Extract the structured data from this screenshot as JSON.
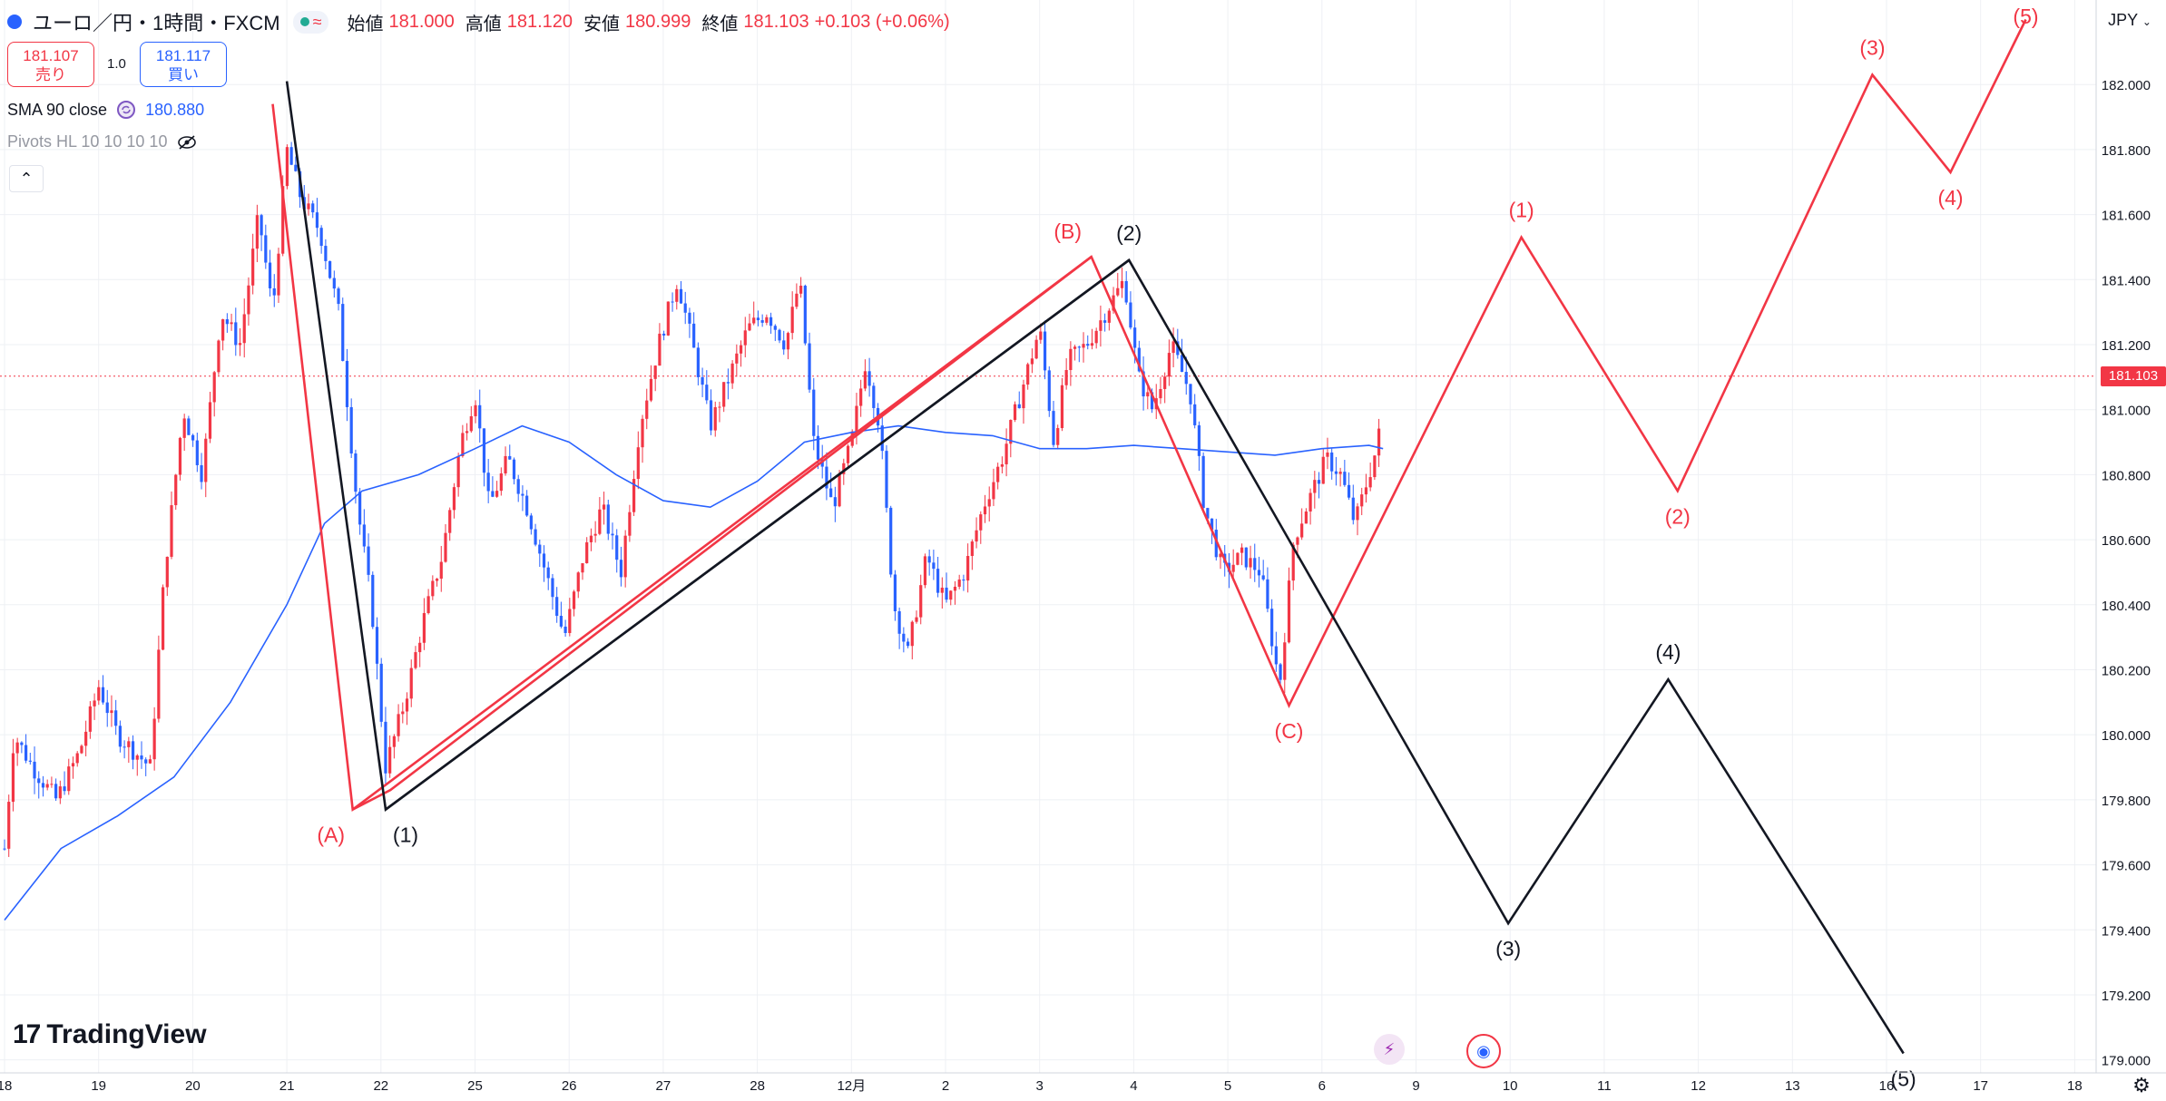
{
  "header": {
    "symbol": "ユーロ／円・1時間・FXCM",
    "status_glyph": "≈",
    "open_label": "始値",
    "open": "181.000",
    "high_label": "高値",
    "high": "181.120",
    "low_label": "安値",
    "low": "180.999",
    "close_label": "終値",
    "close": "181.103",
    "change": "+0.103 (+0.06%)"
  },
  "trade": {
    "sell_price": "181.107",
    "sell_label": "売り",
    "quantity": "1.0",
    "buy_price": "181.117",
    "buy_label": "買い"
  },
  "indicators": {
    "sma_label": "SMA 90 close",
    "sma_value": "180.880",
    "pivots_label": "Pivots HL 10 10 10 10"
  },
  "currency": "JPY",
  "current_price": "181.103",
  "branding": "TradingView",
  "colors": {
    "red": "#f23645",
    "blue": "#2962ff",
    "black": "#131722",
    "sma": "#2962ff"
  },
  "chart_data": {
    "type": "line",
    "title": "ユーロ／円・1時間・FXCM",
    "xlabel": "",
    "ylabel": "",
    "ylim": [
      178.96,
      182.26
    ],
    "y_ticks": [
      "182.000",
      "181.800",
      "181.600",
      "181.400",
      "181.200",
      "181.000",
      "180.800",
      "180.600",
      "180.400",
      "180.200",
      "180.000",
      "179.800",
      "179.600",
      "179.400",
      "179.200",
      "179.000"
    ],
    "x_ticks": [
      {
        "t": 0,
        "label": "18"
      },
      {
        "t": 1,
        "label": "19"
      },
      {
        "t": 2,
        "label": "20"
      },
      {
        "t": 3,
        "label": "21"
      },
      {
        "t": 4,
        "label": "22"
      },
      {
        "t": 5,
        "label": "25"
      },
      {
        "t": 6,
        "label": "26"
      },
      {
        "t": 7,
        "label": "27"
      },
      {
        "t": 8,
        "label": "28"
      },
      {
        "t": 9,
        "label": "12月"
      },
      {
        "t": 10,
        "label": "2"
      },
      {
        "t": 11,
        "label": "3"
      },
      {
        "t": 12,
        "label": "4"
      },
      {
        "t": 13,
        "label": "5"
      },
      {
        "t": 14,
        "label": "6"
      },
      {
        "t": 15,
        "label": "9"
      },
      {
        "t": 16,
        "label": "10"
      },
      {
        "t": 17,
        "label": "11"
      },
      {
        "t": 18,
        "label": "12"
      },
      {
        "t": 19,
        "label": "13"
      },
      {
        "t": 20,
        "label": "16"
      },
      {
        "t": 21,
        "label": "17"
      },
      {
        "t": 22,
        "label": "18"
      }
    ],
    "price_keypoints": [
      [
        0.0,
        179.65
      ],
      [
        0.1,
        180.0
      ],
      [
        0.3,
        179.9
      ],
      [
        0.55,
        179.8
      ],
      [
        0.8,
        179.95
      ],
      [
        1.0,
        180.15
      ],
      [
        1.2,
        180.0
      ],
      [
        1.55,
        179.9
      ],
      [
        1.7,
        180.5
      ],
      [
        1.9,
        181.0
      ],
      [
        2.1,
        180.8
      ],
      [
        2.3,
        181.3
      ],
      [
        2.5,
        181.2
      ],
      [
        2.7,
        181.6
      ],
      [
        2.85,
        181.3
      ],
      [
        3.0,
        181.8
      ],
      [
        3.15,
        181.65
      ],
      [
        3.35,
        181.55
      ],
      [
        3.55,
        181.3
      ],
      [
        3.75,
        180.7
      ],
      [
        3.9,
        180.4
      ],
      [
        4.05,
        179.9
      ],
      [
        4.25,
        180.1
      ],
      [
        4.45,
        180.35
      ],
      [
        4.65,
        180.55
      ],
      [
        4.85,
        180.9
      ],
      [
        5.0,
        181.05
      ],
      [
        5.15,
        180.7
      ],
      [
        5.35,
        180.85
      ],
      [
        5.55,
        180.7
      ],
      [
        5.75,
        180.5
      ],
      [
        5.95,
        180.3
      ],
      [
        6.15,
        180.55
      ],
      [
        6.35,
        180.7
      ],
      [
        6.55,
        180.5
      ],
      [
        6.75,
        180.95
      ],
      [
        6.95,
        181.2
      ],
      [
        7.15,
        181.4
      ],
      [
        7.35,
        181.15
      ],
      [
        7.5,
        180.95
      ],
      [
        7.7,
        181.1
      ],
      [
        7.9,
        181.25
      ],
      [
        8.1,
        181.3
      ],
      [
        8.3,
        181.2
      ],
      [
        8.45,
        181.4
      ],
      [
        8.6,
        180.9
      ],
      [
        8.8,
        180.7
      ],
      [
        9.0,
        180.9
      ],
      [
        9.15,
        181.15
      ],
      [
        9.3,
        180.95
      ],
      [
        9.45,
        180.4
      ],
      [
        9.6,
        180.25
      ],
      [
        9.8,
        180.55
      ],
      [
        10.0,
        180.4
      ],
      [
        10.2,
        180.5
      ],
      [
        10.4,
        180.7
      ],
      [
        10.6,
        180.85
      ],
      [
        10.8,
        181.05
      ],
      [
        11.0,
        181.25
      ],
      [
        11.15,
        180.9
      ],
      [
        11.3,
        181.15
      ],
      [
        11.5,
        181.2
      ],
      [
        11.7,
        181.3
      ],
      [
        11.9,
        181.4
      ],
      [
        12.05,
        181.1
      ],
      [
        12.2,
        181.0
      ],
      [
        12.4,
        181.2
      ],
      [
        12.6,
        181.05
      ],
      [
        12.75,
        180.7
      ],
      [
        12.95,
        180.5
      ],
      [
        13.15,
        180.55
      ],
      [
        13.35,
        180.5
      ],
      [
        13.55,
        180.15
      ],
      [
        13.7,
        180.6
      ],
      [
        13.9,
        180.75
      ],
      [
        14.05,
        180.85
      ],
      [
        14.2,
        180.8
      ],
      [
        14.35,
        180.65
      ],
      [
        14.5,
        180.8
      ],
      [
        14.6,
        180.9
      ],
      [
        14.65,
        181.1
      ]
    ],
    "sma_keypoints": [
      [
        0.0,
        179.43
      ],
      [
        0.6,
        179.65
      ],
      [
        1.2,
        179.75
      ],
      [
        1.8,
        179.87
      ],
      [
        2.4,
        180.1
      ],
      [
        3.0,
        180.4
      ],
      [
        3.4,
        180.65
      ],
      [
        3.8,
        180.75
      ],
      [
        4.4,
        180.8
      ],
      [
        5.0,
        180.88
      ],
      [
        5.5,
        180.95
      ],
      [
        6.0,
        180.9
      ],
      [
        6.5,
        180.8
      ],
      [
        7.0,
        180.72
      ],
      [
        7.5,
        180.7
      ],
      [
        8.0,
        180.78
      ],
      [
        8.5,
        180.9
      ],
      [
        9.0,
        180.93
      ],
      [
        9.5,
        180.95
      ],
      [
        10.0,
        180.93
      ],
      [
        10.5,
        180.92
      ],
      [
        11.0,
        180.88
      ],
      [
        11.5,
        180.88
      ],
      [
        12.0,
        180.89
      ],
      [
        12.5,
        180.88
      ],
      [
        13.0,
        180.87
      ],
      [
        13.5,
        180.86
      ],
      [
        14.0,
        180.88
      ],
      [
        14.5,
        180.89
      ],
      [
        14.65,
        180.88
      ]
    ],
    "wave_red": {
      "points": [
        [
          2.85,
          181.94
        ],
        [
          3.7,
          179.77
        ],
        [
          11.55,
          181.47
        ],
        [
          13.65,
          180.09
        ],
        [
          16.12,
          181.53
        ],
        [
          17.78,
          180.75
        ],
        [
          19.85,
          182.03
        ],
        [
          20.68,
          181.73
        ],
        [
          21.48,
          182.2
        ]
      ],
      "labels": [
        {
          "text": "(A)",
          "at": 1,
          "pos": "below-left"
        },
        {
          "text": "(B)",
          "at": 2,
          "pos": "above-left"
        },
        {
          "text": "(C)",
          "at": 3,
          "pos": "below"
        },
        {
          "text": "(1)",
          "at": 4,
          "pos": "above"
        },
        {
          "text": "(2)",
          "at": 5,
          "pos": "below"
        },
        {
          "text": "(3)",
          "at": 6,
          "pos": "above"
        },
        {
          "text": "(4)",
          "at": 7,
          "pos": "below"
        },
        {
          "text": "(5)",
          "at": 8,
          "pos": "above-edge"
        }
      ]
    },
    "wave_black": {
      "points": [
        [
          3.0,
          182.01
        ],
        [
          4.05,
          179.77
        ],
        [
          11.95,
          181.46
        ],
        [
          15.98,
          179.42
        ],
        [
          17.68,
          180.17
        ],
        [
          20.18,
          179.02
        ]
      ],
      "labels": [
        {
          "text": "(1)",
          "at": 1,
          "pos": "below-right"
        },
        {
          "text": "(2)",
          "at": 2,
          "pos": "above"
        },
        {
          "text": "(3)",
          "at": 3,
          "pos": "below"
        },
        {
          "text": "(4)",
          "at": 4,
          "pos": "above"
        },
        {
          "text": "(5)",
          "at": 5,
          "pos": "below"
        }
      ]
    },
    "extra_red_channel": [
      [
        3.7,
        179.77
      ],
      [
        4.1,
        179.83
      ],
      [
        11.55,
        181.47
      ]
    ],
    "extra_black_channel": [
      [
        4.05,
        179.77
      ],
      [
        11.95,
        181.46
      ]
    ]
  }
}
